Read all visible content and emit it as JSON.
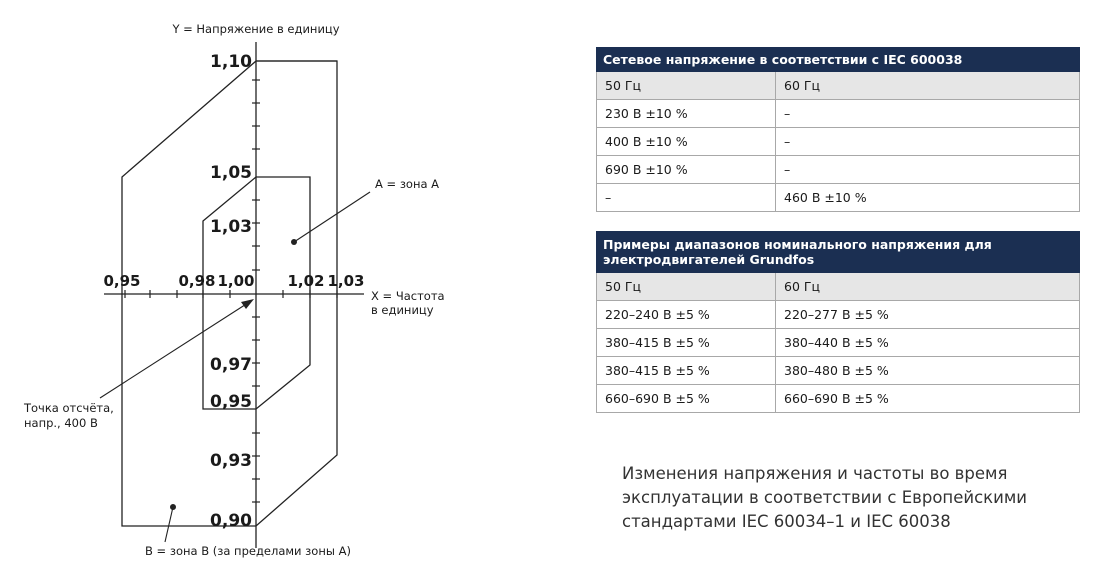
{
  "diagram": {
    "y_axis_label": "Y = Напряжение в единицу",
    "x_axis_label_line1": "X = Частота",
    "x_axis_label_line2": "в единицу",
    "y_ticks": [
      "1,10",
      "1,05",
      "1,03",
      "0,97",
      "0,95",
      "0,93",
      "0,90"
    ],
    "x_ticks": [
      "0,95",
      "0,98",
      "1,00",
      "1,02",
      "1,03"
    ],
    "zone_a_label": "A = зона А",
    "zone_b_label": "B = зона В (за пределами зоны А)",
    "reference_label_line1": "Точка отсчёта,",
    "reference_label_line2": "напр., 400 В"
  },
  "table1": {
    "title": "Сетевое напряжение в соответствии с IEC 600038",
    "headers": [
      "50 Гц",
      "60 Гц"
    ],
    "rows": [
      [
        "230 В ±10 %",
        "–"
      ],
      [
        "400 В ±10 %",
        "–"
      ],
      [
        "690 В ±10 %",
        "–"
      ],
      [
        "–",
        "460 В ±10 %"
      ]
    ]
  },
  "table2": {
    "title": "Примеры диапазонов номинального напряжения для электродвигателей Grundfos",
    "headers": [
      "50 Гц",
      "60 Гц"
    ],
    "rows": [
      [
        "220–240 В ±5 %",
        "220–277 В ±5 %"
      ],
      [
        "380–415 В ±5 %",
        "380–440 В ±5 %"
      ],
      [
        "380–415 В ±5 %",
        "380–480 В ±5 %"
      ],
      [
        "660–690 В ±5 %",
        "660–690 В ±5 %"
      ]
    ]
  },
  "caption": "Изменения напряжения и частоты во время эксплуатации в соответствии с Европейскими стандартами IEC 60034–1 и IEC 60038"
}
